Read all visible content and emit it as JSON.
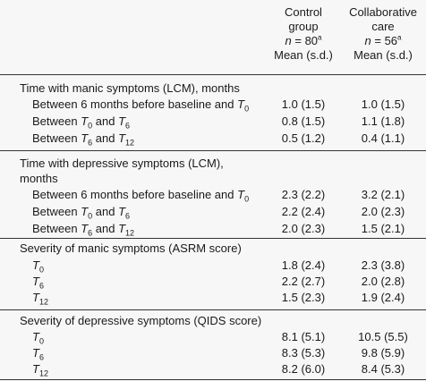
{
  "header": {
    "col1": {
      "line1": "Control",
      "line2": "group",
      "n": "n",
      "eq": " = 80",
      "sup": "a",
      "stat": "Mean (s.d.)"
    },
    "col2": {
      "line1": "Collaborative",
      "line2": "care",
      "n": "n",
      "eq": " = 56",
      "sup": "a",
      "stat": "Mean (s.d.)"
    }
  },
  "sections": [
    {
      "title": "Time with manic symptoms (LCM), months",
      "rows": [
        {
          "pre": "Between 6 months before baseline and ",
          "t1": "T",
          "s1": "0",
          "mid": "",
          "t2": "",
          "s2": "",
          "v1": "1.0 (1.5)",
          "v2": "1.0 (1.5)"
        },
        {
          "pre": "Between ",
          "t1": "T",
          "s1": "0",
          "mid": " and ",
          "t2": "T",
          "s2": "6",
          "v1": "0.8 (1.5)",
          "v2": "1.1 (1.8)"
        },
        {
          "pre": "Between ",
          "t1": "T",
          "s1": "6",
          "mid": " and ",
          "t2": "T",
          "s2": "12",
          "v1": "0.5 (1.2)",
          "v2": "0.4 (1.1)"
        }
      ]
    },
    {
      "title": "Time with depressive symptoms (LCM),",
      "title2": "months",
      "rows": [
        {
          "pre": "Between 6 months before baseline and ",
          "t1": "T",
          "s1": "0",
          "mid": "",
          "t2": "",
          "s2": "",
          "v1": "2.3 (2.2)",
          "v2": "3.2 (2.1)"
        },
        {
          "pre": "Between ",
          "t1": "T",
          "s1": "0",
          "mid": " and ",
          "t2": "T",
          "s2": "6",
          "v1": "2.2 (2.4)",
          "v2": "2.0 (2.3)"
        },
        {
          "pre": "Between ",
          "t1": "T",
          "s1": "6",
          "mid": " and ",
          "t2": "T",
          "s2": "12",
          "v1": "2.0 (2.3)",
          "v2": "1.5 (2.1)"
        }
      ]
    },
    {
      "title": "Severity of manic symptoms (ASRM score)",
      "rows": [
        {
          "t1": "T",
          "s1": "0",
          "v1": "1.8 (2.4)",
          "v2": "2.3 (3.8)"
        },
        {
          "t1": "T",
          "s1": "6",
          "v1": "2.2 (2.7)",
          "v2": "2.0 (2.8)"
        },
        {
          "t1": "T",
          "s1": "12",
          "v1": "1.5 (2.3)",
          "v2": "1.9 (2.4)"
        }
      ]
    },
    {
      "title": "Severity of depressive symptoms (QIDS score)",
      "rows": [
        {
          "t1": "T",
          "s1": "0",
          "v1": "8.1 (5.1)",
          "v2": "10.5 (5.5)"
        },
        {
          "t1": "T",
          "s1": "6",
          "v1": "8.3 (5.3)",
          "v2": "9.8 (5.9)"
        },
        {
          "t1": "T",
          "s1": "12",
          "v1": "8.2 (6.0)",
          "v2": "8.4 (5.3)"
        }
      ]
    }
  ]
}
